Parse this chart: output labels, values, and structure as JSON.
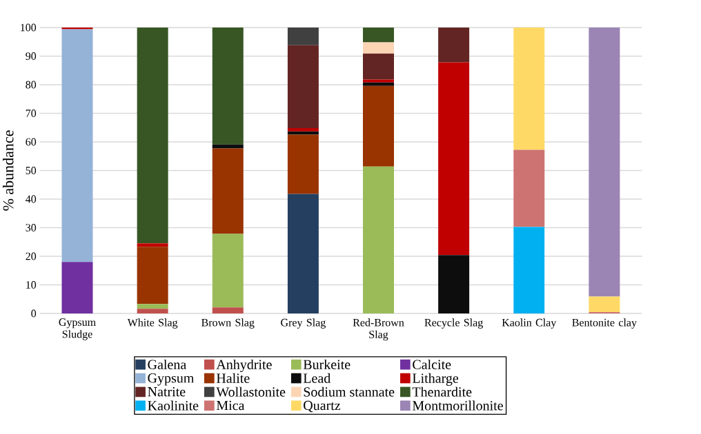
{
  "chart_data": {
    "type": "bar",
    "stacked": true,
    "ylabel": "% abundance",
    "categories": [
      "Gypsum Sludge",
      "White Slag",
      "Brown Slag",
      "Grey Slag",
      "Red-Brown Slag",
      "Recycle Slag",
      "Kaolin Clay",
      "Bentonite clay"
    ],
    "ylim": [
      0,
      100
    ],
    "yticks": [
      0,
      10,
      20,
      30,
      40,
      50,
      60,
      70,
      80,
      90,
      100
    ],
    "grid": "y",
    "legend": "bottom",
    "series": [
      {
        "name": "Galena",
        "color": "#243f60",
        "values": [
          null,
          null,
          null,
          41.8,
          null,
          null,
          null,
          null
        ]
      },
      {
        "name": "Anhydrite",
        "color": "#c0504d",
        "values": [
          null,
          1.6,
          2.1,
          null,
          null,
          null,
          null,
          null
        ]
      },
      {
        "name": "Burkeite",
        "color": "#9bbb59",
        "values": [
          null,
          1.7,
          25.7,
          null,
          51.4,
          null,
          null,
          null
        ]
      },
      {
        "name": "Calcite",
        "color": "#7030a0",
        "values": [
          18.0,
          null,
          null,
          null,
          null,
          null,
          null,
          null
        ]
      },
      {
        "name": "Gypsum",
        "color": "#95b3d7",
        "values": [
          81.4,
          null,
          null,
          null,
          null,
          null,
          null,
          null
        ]
      },
      {
        "name": "Halite",
        "color": "#993300",
        "values": [
          null,
          20.0,
          29.9,
          20.7,
          28.2,
          null,
          null,
          null
        ]
      },
      {
        "name": "Lead",
        "color": "#0d0d0d",
        "values": [
          null,
          null,
          1.4,
          1.2,
          1.2,
          20.4,
          null,
          null
        ]
      },
      {
        "name": "Litharge",
        "color": "#c00000",
        "values": [
          0.6,
          1.2,
          null,
          1.1,
          1.0,
          67.4,
          null,
          null
        ]
      },
      {
        "name": "Natrite",
        "color": "#632523",
        "values": [
          null,
          null,
          null,
          29.0,
          9.1,
          12.2,
          null,
          null
        ]
      },
      {
        "name": "Wollastonite",
        "color": "#404040",
        "values": [
          null,
          null,
          null,
          6.2,
          null,
          null,
          null,
          null
        ]
      },
      {
        "name": "Sodium stannate",
        "color": "#fcd5b5",
        "values": [
          null,
          null,
          null,
          null,
          3.9,
          null,
          null,
          null
        ]
      },
      {
        "name": "Thenardite",
        "color": "#375623",
        "values": [
          null,
          75.5,
          40.9,
          null,
          5.2,
          null,
          null,
          null
        ]
      },
      {
        "name": "Kaolinite",
        "color": "#00b0f0",
        "values": [
          null,
          null,
          null,
          null,
          null,
          null,
          30.3,
          null
        ]
      },
      {
        "name": "Mica",
        "color": "#cd7371",
        "values": [
          null,
          null,
          null,
          null,
          null,
          null,
          26.9,
          0.5
        ]
      },
      {
        "name": "Quartz",
        "color": "#ffd966",
        "values": [
          null,
          null,
          null,
          null,
          null,
          null,
          42.8,
          5.4
        ]
      },
      {
        "name": "Montmorillonite",
        "color": "#9b85b4",
        "values": [
          null,
          null,
          null,
          null,
          null,
          null,
          null,
          94.1
        ]
      }
    ]
  }
}
